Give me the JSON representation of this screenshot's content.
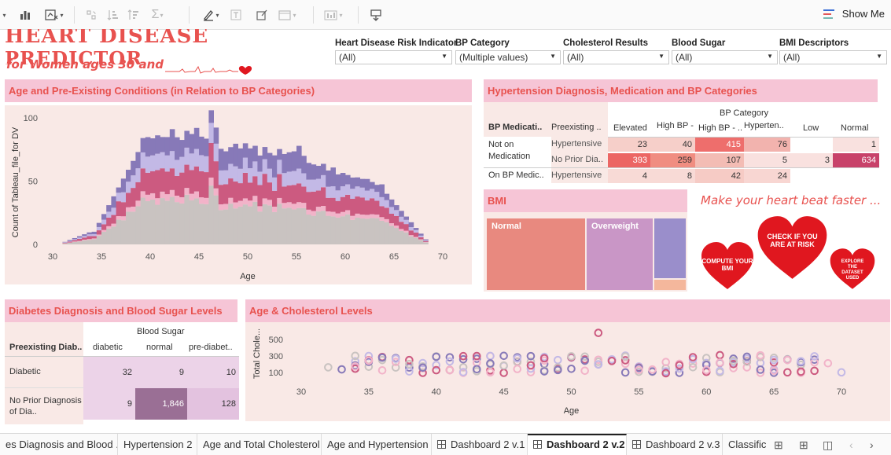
{
  "toolbar": {
    "show_me_label": "Show Me",
    "icons": [
      "show-cards-icon",
      "data-guide-icon",
      "clear-sheet-icon",
      "swap-icon",
      "sort-ascending-icon",
      "sort-descending-icon",
      "totals-icon",
      "highlight-icon",
      "text-label-icon",
      "annotate-icon",
      "fit-icon",
      "show-hide-cards-icon",
      "presentation-icon"
    ]
  },
  "dashboard": {
    "title": "HEART DISEASE",
    "title_line2": "PREDICTOR",
    "subtitle": "for Women ages 30 and"
  },
  "filters": [
    {
      "label": "Heart Disease Risk Indicator",
      "value": "(All)"
    },
    {
      "label": "BP Category",
      "value": "(Multiple values)"
    },
    {
      "label": "Cholesterol  Results",
      "value": "(All)"
    },
    {
      "label": "Blood Sugar",
      "value": "(All)"
    },
    {
      "label": "BMI Descriptors",
      "value": "(All)"
    }
  ],
  "age_chart": {
    "title": "Age and Pre-Existing Conditions (in Relation to BP Categories)",
    "ylabel": "Count of Tableau_file_for DV",
    "xlabel": "Age",
    "xticks": [
      "30",
      "35",
      "40",
      "45",
      "50",
      "55",
      "60",
      "65",
      "70"
    ],
    "yticks": [
      "100",
      "50",
      "0"
    ]
  },
  "hyp_table": {
    "title": "Hypertension Diagnosis, Medication and BP Categories",
    "col_group": "BP Category",
    "row_headers": [
      "BP Medicati..",
      "Preexisting .."
    ],
    "columns": [
      "Elevated",
      "High BP -",
      "High BP - ..",
      "Hyperten..",
      "Low",
      "Normal"
    ],
    "med_labels": [
      "Not on Medication",
      "On BP Medic.."
    ],
    "pre_labels": [
      "Hypertensive",
      "No Prior Dia..",
      "Hypertensive"
    ],
    "rows": [
      [
        "23",
        "40",
        "415",
        "76",
        "",
        "1"
      ],
      [
        "393",
        "259",
        "107",
        "5",
        "3",
        "634"
      ],
      [
        "4",
        "8",
        "42",
        "24",
        "",
        ""
      ]
    ]
  },
  "bmi": {
    "title": "BMI",
    "labels": [
      "Normal",
      "Overweight"
    ]
  },
  "promo": {
    "title": "Make your heart beat faster ...",
    "buttons": [
      "COMPUTE YOUR BMI",
      "CHECK IF YOU ARE AT RISK",
      "EXPLORE THE DATASET USED"
    ]
  },
  "diab_table": {
    "title": "Diabetes Diagnosis and Blood Sugar Levels",
    "col_group": "Blood Sugar",
    "row_header": "Preexisting Diab..",
    "columns": [
      "diabetic",
      "normal",
      "pre-diabet.."
    ],
    "row_labels": [
      "Diabetic",
      "No Prior Diagnosis of Dia.."
    ],
    "rows": [
      [
        "32",
        "9",
        "10"
      ],
      [
        "9",
        "1,846",
        "128"
      ]
    ]
  },
  "chol_chart": {
    "title": "Age & Cholesterol Levels",
    "ylabel": "Total Chole...",
    "xlabel": "Age",
    "yticks": [
      "500",
      "300",
      "100"
    ],
    "xticks": [
      "30",
      "35",
      "40",
      "45",
      "50",
      "55",
      "60",
      "65",
      "70"
    ]
  },
  "tabs": [
    "es Diagnosis and Blood ...",
    "Hypertension 2",
    "Age and Total Cholesterol",
    "Age and Hypertension",
    "Dashboard 2 v.1",
    "Dashboard 2 v.2",
    "Dashboard 2 v.3",
    "Classific"
  ],
  "active_tab": "Dashboard 2 v.2",
  "colors": {
    "accent_red": "#e8524f",
    "section_header_bg": "#f6c5d6",
    "panel_bg": "#f9e9e6",
    "series_purple": "#8779b8",
    "series_lavender": "#c3b9e6",
    "series_rose": "#cc5a80",
    "series_pink": "#f2b3c9",
    "series_gray": "#c9c3c1"
  }
}
